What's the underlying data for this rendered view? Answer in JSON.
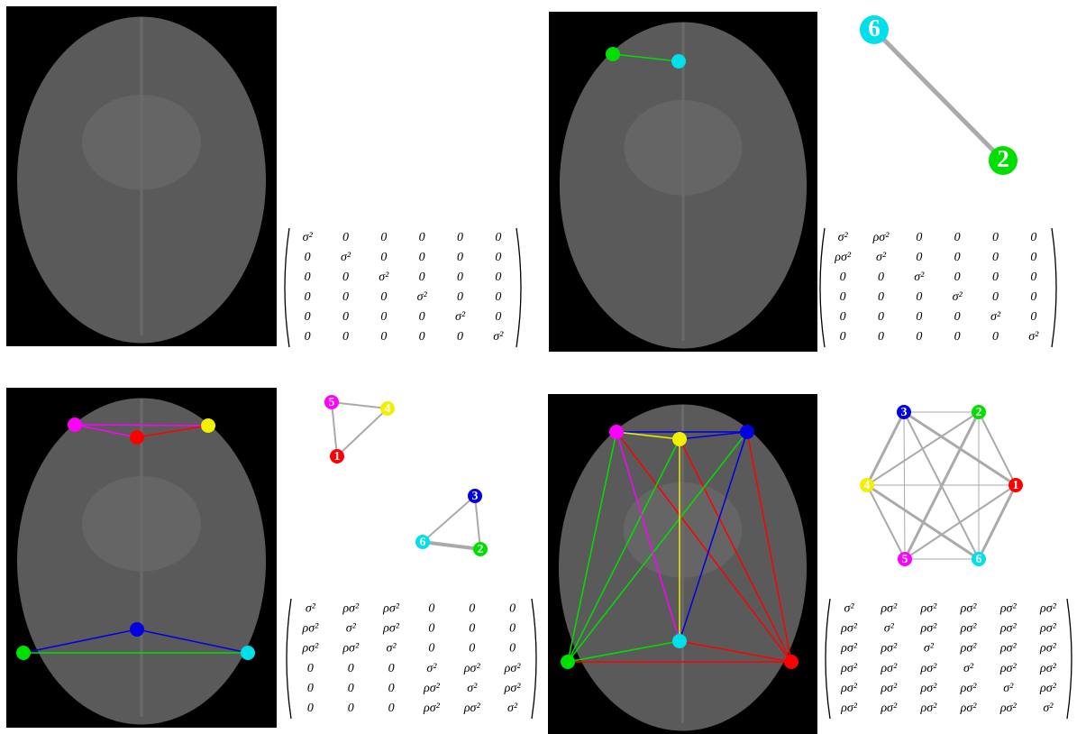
{
  "panels": [
    {
      "matrix": [
        [
          "σ²",
          "0",
          "0",
          "0",
          "0",
          "0"
        ],
        [
          "0",
          "σ²",
          "0",
          "0",
          "0",
          "0"
        ],
        [
          "0",
          "0",
          "σ²",
          "0",
          "0",
          "0"
        ],
        [
          "0",
          "0",
          "0",
          "σ²",
          "0",
          "0"
        ],
        [
          "0",
          "0",
          "0",
          "0",
          "σ²",
          "0"
        ],
        [
          "0",
          "0",
          "0",
          "0",
          "0",
          "σ²"
        ]
      ]
    },
    {
      "nodes": [
        "6",
        "2"
      ],
      "matrix": [
        [
          "σ²",
          "ρσ²",
          "0",
          "0",
          "0",
          "0"
        ],
        [
          "ρσ²",
          "σ²",
          "0",
          "0",
          "0",
          "0"
        ],
        [
          "0",
          "0",
          "σ²",
          "0",
          "0",
          "0"
        ],
        [
          "0",
          "0",
          "0",
          "σ²",
          "0",
          "0"
        ],
        [
          "0",
          "0",
          "0",
          "0",
          "σ²",
          "0"
        ],
        [
          "0",
          "0",
          "0",
          "0",
          "0",
          "σ²"
        ]
      ]
    },
    {
      "nodes": [
        "5",
        "4",
        "1",
        "3",
        "6",
        "2"
      ],
      "matrix": [
        [
          "σ²",
          "ρσ²",
          "ρσ²",
          "0",
          "0",
          "0"
        ],
        [
          "ρσ²",
          "σ²",
          "ρσ²",
          "0",
          "0",
          "0"
        ],
        [
          "ρσ²",
          "ρσ²",
          "σ²",
          "0",
          "0",
          "0"
        ],
        [
          "0",
          "0",
          "0",
          "σ²",
          "ρσ²",
          "ρσ²"
        ],
        [
          "0",
          "0",
          "0",
          "ρσ²",
          "σ²",
          "ρσ²"
        ],
        [
          "0",
          "0",
          "0",
          "ρσ²",
          "ρσ²",
          "σ²"
        ]
      ]
    },
    {
      "nodes": [
        "3",
        "2",
        "4",
        "1",
        "5",
        "6"
      ],
      "matrix": [
        [
          "σ²",
          "ρσ²",
          "ρσ²",
          "ρσ²",
          "ρσ²",
          "ρσ²"
        ],
        [
          "ρσ²",
          "σ²",
          "ρσ²",
          "ρσ²",
          "ρσ²",
          "ρσ²"
        ],
        [
          "ρσ²",
          "ρσ²",
          "σ²",
          "ρσ²",
          "ρσ²",
          "ρσ²"
        ],
        [
          "ρσ²",
          "ρσ²",
          "ρσ²",
          "σ²",
          "ρσ²",
          "ρσ²"
        ],
        [
          "ρσ²",
          "ρσ²",
          "ρσ²",
          "ρσ²",
          "σ²",
          "ρσ²"
        ],
        [
          "ρσ²",
          "ρσ²",
          "ρσ²",
          "ρσ²",
          "ρσ²",
          "σ²"
        ]
      ]
    }
  ]
}
